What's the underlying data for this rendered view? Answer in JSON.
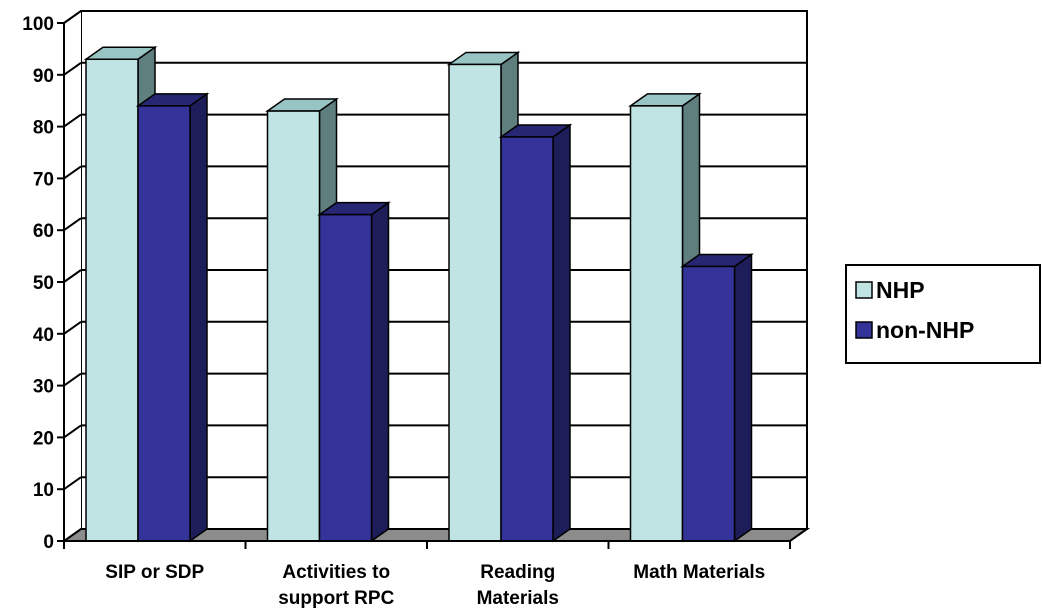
{
  "chart_data": {
    "type": "bar",
    "categories": [
      [
        "SIP or SDP"
      ],
      [
        "Activities to",
        "support RPC"
      ],
      [
        "Reading",
        "Materials"
      ],
      [
        "Math Materials"
      ]
    ],
    "series": [
      {
        "name": "NHP",
        "values": [
          93,
          83,
          92,
          84
        ],
        "color": "#c0e4e4"
      },
      {
        "name": "non-NHP",
        "values": [
          84,
          63,
          78,
          53
        ],
        "color": "#333399"
      }
    ],
    "ylim": [
      0,
      100
    ],
    "yticks": [
      0,
      10,
      20,
      30,
      40,
      50,
      60,
      70,
      80,
      90,
      100
    ],
    "grid": true,
    "legend_position": "right",
    "style": "3d-clustered-column"
  }
}
